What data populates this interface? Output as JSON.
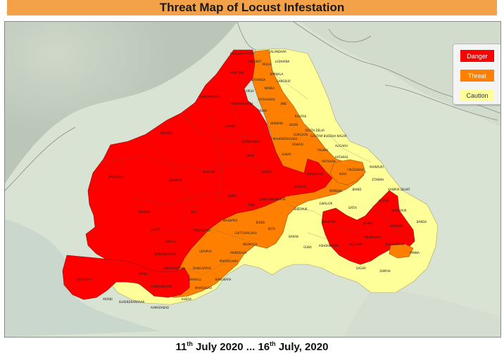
{
  "title": "Threat Map of Locust Infestation",
  "legend": {
    "items": [
      {
        "label": "Danger",
        "color": "#ff0000"
      },
      {
        "label": "Threat",
        "color": "#ff8000"
      },
      {
        "label": "Caution",
        "color": "#ffff99"
      }
    ]
  },
  "date_range": {
    "start_day": "11",
    "start_suffix": "th",
    "start_rest": " July 2020",
    "separator": " ... ",
    "end_day": "16",
    "end_suffix": "th",
    "end_rest": " July, 2020"
  },
  "districts": [
    {
      "name": "FAZILKA",
      "level": "danger"
    },
    {
      "name": "MUKTSAR",
      "level": "danger"
    },
    {
      "name": "FARIDKOT",
      "level": "danger"
    },
    {
      "name": "GANGANAGAR",
      "level": "danger"
    },
    {
      "name": "HANUMANGARH",
      "level": "threat"
    },
    {
      "name": "BIKANER",
      "level": "danger"
    },
    {
      "name": "CHURU",
      "level": "danger"
    },
    {
      "name": "JHUNJHUNUN",
      "level": "danger"
    },
    {
      "name": "JAISALMER",
      "level": "danger"
    },
    {
      "name": "BARMER",
      "level": "danger"
    },
    {
      "name": "JODHPUR",
      "level": "danger"
    },
    {
      "name": "NAGAUR",
      "level": "danger"
    },
    {
      "name": "JAIPUR",
      "level": "danger"
    },
    {
      "name": "ALWAR",
      "level": "danger"
    },
    {
      "name": "SIKAR",
      "level": "danger"
    },
    {
      "name": "AJMER",
      "level": "danger"
    },
    {
      "name": "PALI",
      "level": "threat"
    },
    {
      "name": "TONK",
      "level": "threat"
    },
    {
      "name": "BHILWARA",
      "level": "threat"
    },
    {
      "name": "BUNDI",
      "level": "threat"
    },
    {
      "name": "KOTA",
      "level": "threat"
    },
    {
      "name": "SAWAI MADHOPUR",
      "level": "threat"
    },
    {
      "name": "KARAULI",
      "level": "threat"
    },
    {
      "name": "BHARATPUR",
      "level": "threat"
    },
    {
      "name": "JALOR",
      "level": "danger"
    },
    {
      "name": "SIROHI",
      "level": "threat"
    },
    {
      "name": "UDAIPUR",
      "level": "threat"
    },
    {
      "name": "RAJSAMAND",
      "level": "threat"
    },
    {
      "name": "CHITTAURGARH",
      "level": "threat"
    },
    {
      "name": "BANASKANTHA",
      "level": "danger"
    },
    {
      "name": "KACHCHH",
      "level": "danger"
    },
    {
      "name": "PATAN",
      "level": "threat"
    },
    {
      "name": "MORBI",
      "level": "caution"
    },
    {
      "name": "SURENDRANAGAR",
      "level": "caution"
    },
    {
      "name": "AHMADABAD",
      "level": "caution"
    },
    {
      "name": "KHEDA",
      "level": "caution"
    },
    {
      "name": "SABAR KANTHA",
      "level": "danger"
    },
    {
      "name": "ARAVALLI",
      "level": "threat"
    },
    {
      "name": "MAHISAGAR",
      "level": "caution"
    },
    {
      "name": "GANDHINAGAR",
      "level": "danger"
    },
    {
      "name": "DUNGARPUR",
      "level": "threat"
    },
    {
      "name": "BANSWARA",
      "level": "caution"
    },
    {
      "name": "PRATAPGARH",
      "level": "caution"
    },
    {
      "name": "NEEMUCH",
      "level": "caution"
    },
    {
      "name": "MANDSAUR",
      "level": "threat"
    },
    {
      "name": "BARAN",
      "level": "caution"
    },
    {
      "name": "GUNA",
      "level": "caution"
    },
    {
      "name": "ASHOKNAGAR",
      "level": "caution"
    },
    {
      "name": "SHIVPURI",
      "level": "danger"
    },
    {
      "name": "LALITPUR",
      "level": "danger"
    },
    {
      "name": "TIKAMGARH",
      "level": "danger"
    },
    {
      "name": "CHHATARPUR",
      "level": "caution"
    },
    {
      "name": "PANNA",
      "level": "caution"
    },
    {
      "name": "SAGAR",
      "level": "caution"
    },
    {
      "name": "DAMOH",
      "level": "caution"
    },
    {
      "name": "DATIA",
      "level": "caution"
    },
    {
      "name": "JHANSI",
      "level": "danger"
    },
    {
      "name": "GWALIOR",
      "level": "caution"
    },
    {
      "name": "SHEOPUR",
      "level": "caution"
    },
    {
      "name": "MORENA",
      "level": "caution"
    },
    {
      "name": "BHIND",
      "level": "caution"
    },
    {
      "name": "JALAUN",
      "level": "danger"
    },
    {
      "name": "HAMIRPUR",
      "level": "caution"
    },
    {
      "name": "BANDA",
      "level": "caution"
    },
    {
      "name": "MAHOBA",
      "level": "danger"
    },
    {
      "name": "KANPUR DEHAT",
      "level": "caution"
    },
    {
      "name": "ETAWAH",
      "level": "caution"
    },
    {
      "name": "FIROZABAD",
      "level": "threat"
    },
    {
      "name": "AGRA",
      "level": "threat"
    },
    {
      "name": "MATHURA",
      "level": "threat"
    },
    {
      "name": "HATHRAS",
      "level": "caution"
    },
    {
      "name": "ALIGARH",
      "level": "caution"
    },
    {
      "name": "MAINPURI",
      "level": "caution"
    },
    {
      "name": "GURGAON",
      "level": "danger"
    },
    {
      "name": "REWARI",
      "level": "danger"
    },
    {
      "name": "MAHENDRAGARH",
      "level": "danger"
    },
    {
      "name": "BHIWANI",
      "level": "danger"
    },
    {
      "name": "HISAR",
      "level": "threat"
    },
    {
      "name": "SIRSA",
      "level": "threat"
    },
    {
      "name": "FATEHABAD",
      "level": "threat"
    },
    {
      "name": "DADRI",
      "level": "threat"
    },
    {
      "name": "ROHTAK",
      "level": "caution"
    },
    {
      "name": "JIND",
      "level": "caution"
    },
    {
      "name": "PALWAL",
      "level": "caution"
    },
    {
      "name": "SOUTH DELHI",
      "level": "caution"
    },
    {
      "name": "GAUTAM BUDDHA NAGAR",
      "level": "caution"
    },
    {
      "name": "MANSA",
      "level": "threat"
    },
    {
      "name": "BATHINDA",
      "level": "caution"
    },
    {
      "name": "SANGRUR",
      "level": "caution"
    },
    {
      "name": "BARNALA",
      "level": "caution"
    },
    {
      "name": "MOGA",
      "level": "caution"
    },
    {
      "name": "LUDHIANA",
      "level": "caution"
    },
    {
      "name": "JALANDHAR",
      "level": "caution"
    },
    {
      "name": "FIROZPUR",
      "level": "danger"
    }
  ]
}
